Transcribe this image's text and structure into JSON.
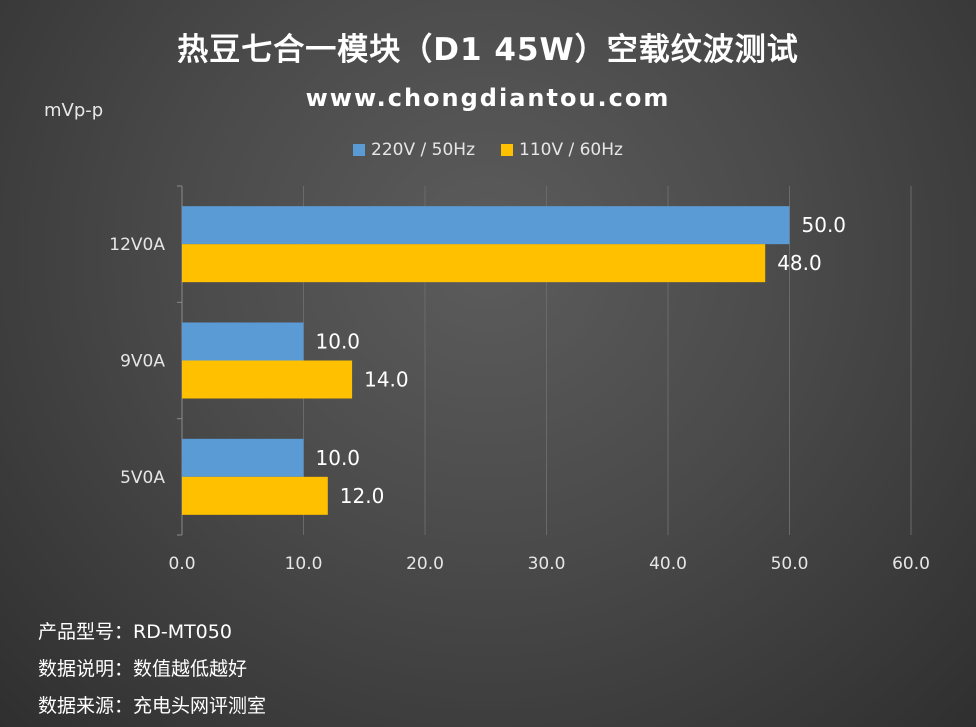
{
  "title": "热豆七合一模块（D1 45W）空载纹波测试",
  "subtitle": "www.chongdiantou.com",
  "unit": "mVp-p",
  "colors": {
    "series1": "#5b9bd5",
    "series2": "#ffc000"
  },
  "chart_data": {
    "type": "bar",
    "orientation": "horizontal",
    "title": "热豆七合一模块（D1 45W）空载纹波测试",
    "ylabel": "mVp-p",
    "categories": [
      "12V0A",
      "9V0A",
      "5V0A"
    ],
    "series": [
      {
        "name": "220V / 50Hz",
        "values": [
          50.0,
          10.0,
          10.0
        ]
      },
      {
        "name": "110V / 60Hz",
        "values": [
          48.0,
          14.0,
          12.0
        ]
      }
    ],
    "xlim": [
      0,
      60
    ],
    "xticks": [
      "0.0",
      "10.0",
      "20.0",
      "30.0",
      "40.0",
      "50.0",
      "60.0"
    ],
    "legend": "top-center",
    "grid": true
  },
  "notes": {
    "model": "产品型号：RD-MT050",
    "description": "数据说明：数值越低越好",
    "source": "数据来源：充电头网评测室"
  }
}
